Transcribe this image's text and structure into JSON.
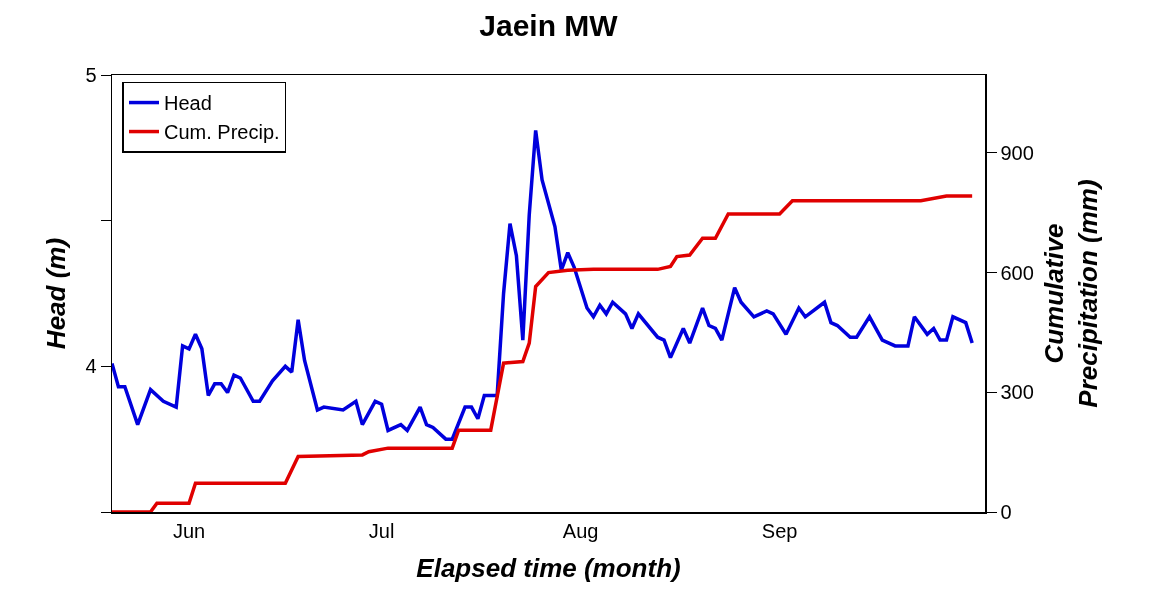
{
  "chart_data": {
    "type": "line",
    "title": "Jaein MW",
    "xlabel": "Elapsed time (month)",
    "ylabel": "Head (m)",
    "y2label": "Cumulative\nPrecipitation (mm)",
    "xlim": [
      "--05-20",
      "--10-03"
    ],
    "xticks": [
      {
        "value": "--06-01",
        "label": "Jun"
      },
      {
        "value": "--07-01",
        "label": "Jul"
      },
      {
        "value": "--08-01",
        "label": "Aug"
      },
      {
        "value": "--09-01",
        "label": "Sep"
      }
    ],
    "ylim": [
      3.5,
      5
    ],
    "yticks": [
      {
        "value": 3.5,
        "label": null
      },
      4,
      {
        "value": 4.5,
        "label": null
      },
      5
    ],
    "y2lim": [
      0,
      1095
    ],
    "y2ticks": [
      0,
      300,
      600,
      900
    ],
    "grid": false,
    "legend": "top left",
    "marker": "none",
    "line_style": "solid",
    "series": [
      {
        "name": "Head",
        "color": "#0000dd",
        "x": [
          "--05-20",
          "--05-21",
          "--05-22",
          "--05-24",
          "--05-26",
          "--05-28",
          "--05-30",
          "--05-31",
          "--06-01",
          "--06-02",
          "--06-03",
          "--06-04",
          "--06-05",
          "--06-06",
          "--06-07",
          "--06-08",
          "--06-09",
          "--06-11",
          "--06-12",
          "--06-14",
          "--06-16",
          "--06-17",
          "--06-18",
          "--06-19",
          "--06-21",
          "--06-22",
          "--06-25",
          "--06-27",
          "--06-28",
          "--06-30",
          "--07-01",
          "--07-02",
          "--07-04",
          "--07-05",
          "--07-07",
          "--07-08",
          "--07-09",
          "--07-11",
          "--07-12",
          "--07-14",
          "--07-15",
          "--07-16",
          "--07-17",
          "--07-18",
          "--07-19",
          "--07-20",
          "--07-21",
          "--07-22",
          "--07-23",
          "--07-24",
          "--07-25",
          "--07-26",
          "--07-28",
          "--07-29",
          "--07-30",
          "--07-31",
          "--08-02",
          "--08-03",
          "--08-04",
          "--08-05",
          "--08-06",
          "--08-08",
          "--08-09",
          "--08-10",
          "--08-13",
          "--08-14",
          "--08-15",
          "--08-17",
          "--08-18",
          "--08-20",
          "--08-21",
          "--08-22",
          "--08-23",
          "--08-25",
          "--08-26",
          "--08-28",
          "--08-30",
          "--08-31",
          "--09-02",
          "--09-04",
          "--09-05",
          "--09-08",
          "--09-09",
          "--09-10",
          "--09-12",
          "--09-13",
          "--09-15",
          "--09-17",
          "--09-19",
          "--09-21",
          "--09-22",
          "--09-24",
          "--09-25",
          "--09-26",
          "--09-27",
          "--09-28",
          "--09-30",
          "--10-01"
        ],
        "values": [
          4.01,
          3.93,
          3.93,
          3.8,
          3.92,
          3.88,
          3.86,
          4.07,
          4.06,
          4.11,
          4.06,
          3.9,
          3.94,
          3.94,
          3.91,
          3.97,
          3.96,
          3.88,
          3.88,
          3.95,
          4.0,
          3.98,
          4.16,
          4.02,
          3.85,
          3.86,
          3.85,
          3.88,
          3.8,
          3.88,
          3.87,
          3.78,
          3.8,
          3.78,
          3.86,
          3.8,
          3.79,
          3.75,
          3.75,
          3.86,
          3.86,
          3.82,
          3.9,
          3.9,
          3.9,
          4.25,
          4.49,
          4.38,
          4.09,
          4.52,
          4.81,
          4.64,
          4.48,
          4.33,
          4.39,
          4.34,
          4.2,
          4.17,
          4.21,
          4.18,
          4.22,
          4.18,
          4.13,
          4.18,
          4.1,
          4.09,
          4.03,
          4.13,
          4.08,
          4.2,
          4.14,
          4.13,
          4.09,
          4.27,
          4.22,
          4.17,
          4.19,
          4.18,
          4.11,
          4.2,
          4.17,
          4.22,
          4.15,
          4.14,
          4.1,
          4.1,
          4.17,
          4.09,
          4.07,
          4.07,
          4.17,
          4.11,
          4.13,
          4.09,
          4.09,
          4.17,
          4.15,
          4.08
        ]
      },
      {
        "name": "Cum. Precip.",
        "color": "#e00000",
        "axis": "y2",
        "x": [
          "--05-20",
          "--05-26",
          "--05-27",
          "--06-01",
          "--06-02",
          "--06-16",
          "--06-18",
          "--06-28",
          "--06-29",
          "--07-02",
          "--07-12",
          "--07-13",
          "--07-18",
          "--07-20",
          "--07-23",
          "--07-24",
          "--07-25",
          "--07-27",
          "--07-30",
          "--08-03",
          "--08-13",
          "--08-15",
          "--08-16",
          "--08-18",
          "--08-20",
          "--08-22",
          "--08-24",
          "--09-01",
          "--09-03",
          "--09-23",
          "--09-27",
          "--10-01"
        ],
        "values": [
          0,
          0,
          22,
          22,
          72,
          72,
          139,
          143,
          151,
          160,
          160,
          205,
          205,
          373,
          377,
          423,
          565,
          600,
          606,
          608,
          608,
          615,
          640,
          644,
          686,
          686,
          747,
          747,
          780,
          780,
          792,
          792
        ]
      }
    ]
  }
}
